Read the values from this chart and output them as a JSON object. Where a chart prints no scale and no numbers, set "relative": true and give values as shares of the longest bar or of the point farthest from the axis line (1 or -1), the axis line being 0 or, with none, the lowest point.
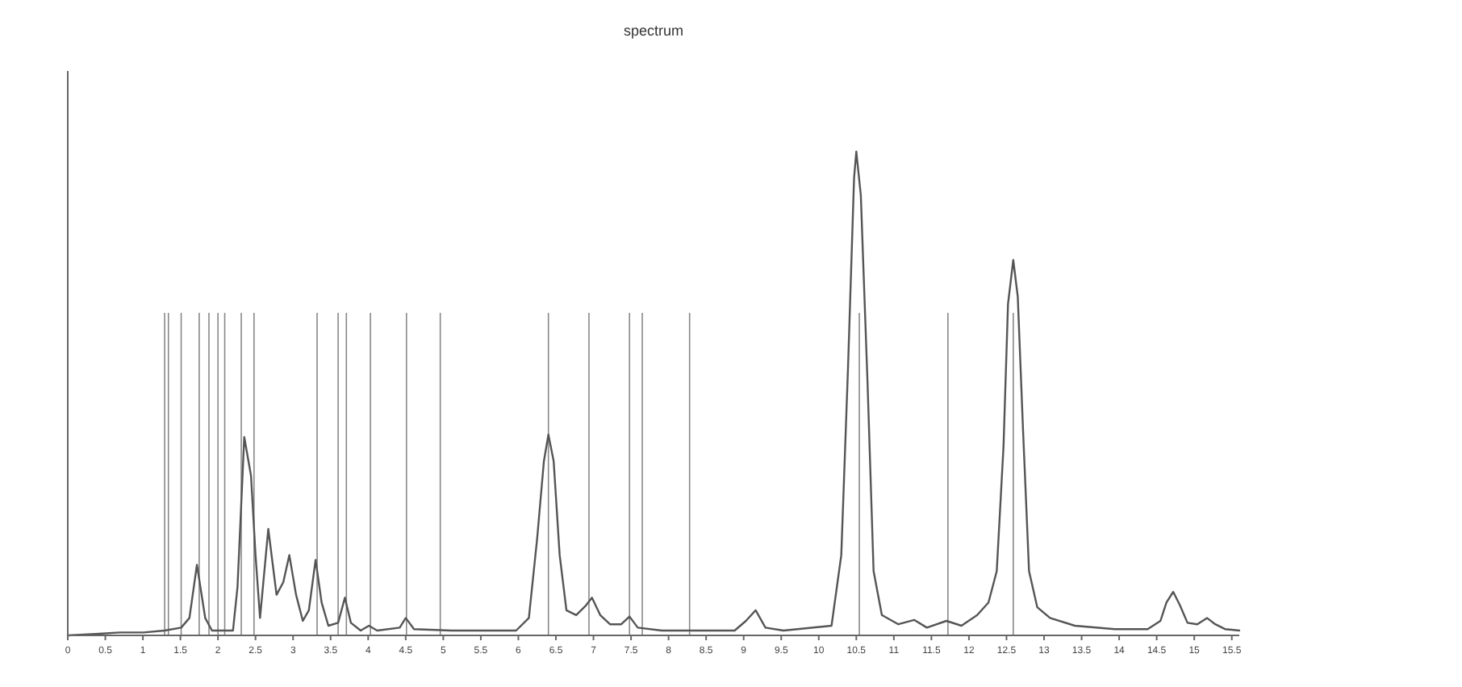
{
  "chart_data": {
    "type": "line",
    "title": "spectrum",
    "relative": true,
    "color": "#555555",
    "xlim": [
      0,
      15.6
    ],
    "xticks": [
      0,
      0.5,
      1,
      1.5,
      2,
      2.5,
      3,
      3.5,
      4,
      4.5,
      5,
      5.5,
      6,
      6.5,
      7,
      7.5,
      8,
      8.5,
      9,
      9.5,
      10,
      10.5,
      11,
      11.5,
      12,
      12.5,
      13,
      13.5,
      14,
      14.5,
      15,
      15.5
    ],
    "x": [
      0,
      0.37,
      0.69,
      1.01,
      1.29,
      1.51,
      1.62,
      1.72,
      1.83,
      1.92,
      2.2,
      2.26,
      2.35,
      2.44,
      2.5,
      2.56,
      2.67,
      2.78,
      2.87,
      2.95,
      3.04,
      3.13,
      3.21,
      3.3,
      3.38,
      3.47,
      3.6,
      3.69,
      3.77,
      3.9,
      4.01,
      4.12,
      4.42,
      4.5,
      4.61,
      5.11,
      5.97,
      6.14,
      6.25,
      6.34,
      6.4,
      6.47,
      6.55,
      6.64,
      6.77,
      6.9,
      6.98,
      7.09,
      7.22,
      7.37,
      7.48,
      7.59,
      7.91,
      8.88,
      9.03,
      9.16,
      9.29,
      9.53,
      10.17,
      10.3,
      10.39,
      10.47,
      10.5,
      10.56,
      10.65,
      10.73,
      10.84,
      11.06,
      11.27,
      11.44,
      11.7,
      11.9,
      12.11,
      12.26,
      12.37,
      12.46,
      12.52,
      12.59,
      12.65,
      12.72,
      12.8,
      12.91,
      13.08,
      13.41,
      13.94,
      14.38,
      14.55,
      14.63,
      14.72,
      14.81,
      14.91,
      15.04,
      15.17,
      15.28,
      15.41,
      15.6
    ],
    "values": [
      0,
      0.003,
      0.006,
      0.006,
      0.01,
      0.016,
      0.036,
      0.146,
      0.036,
      0.01,
      0.01,
      0.1,
      0.41,
      0.33,
      0.166,
      0.036,
      0.22,
      0.084,
      0.11,
      0.166,
      0.084,
      0.03,
      0.052,
      0.156,
      0.068,
      0.02,
      0.026,
      0.078,
      0.026,
      0.01,
      0.02,
      0.01,
      0.016,
      0.036,
      0.013,
      0.01,
      0.01,
      0.036,
      0.2,
      0.36,
      0.415,
      0.36,
      0.166,
      0.052,
      0.042,
      0.062,
      0.078,
      0.042,
      0.023,
      0.023,
      0.039,
      0.016,
      0.01,
      0.01,
      0.03,
      0.052,
      0.016,
      0.01,
      0.02,
      0.166,
      0.555,
      0.945,
      1,
      0.91,
      0.52,
      0.133,
      0.042,
      0.023,
      0.032,
      0.016,
      0.03,
      0.02,
      0.042,
      0.068,
      0.133,
      0.39,
      0.685,
      0.776,
      0.7,
      0.425,
      0.133,
      0.058,
      0.036,
      0.02,
      0.013,
      0.013,
      0.03,
      0.068,
      0.09,
      0.062,
      0.026,
      0.023,
      0.036,
      0.023,
      0.013,
      0.01
    ],
    "ref_lines": [
      {
        "axis": "x",
        "value": 1.29,
        "color": "#888888"
      },
      {
        "axis": "x",
        "value": 1.51,
        "color": "#888888"
      },
      {
        "axis": "x",
        "value": 1.75,
        "color": "#888888"
      },
      {
        "axis": "x",
        "value": 2.0,
        "color": "#888888"
      },
      {
        "axis": "x",
        "value": 2.31,
        "color": "#888888"
      },
      {
        "axis": "x",
        "value": 3.32,
        "color": "#888888"
      },
      {
        "axis": "x",
        "value": 3.71,
        "color": "#888888"
      },
      {
        "axis": "x",
        "value": 4.51,
        "color": "#888888"
      },
      {
        "axis": "x",
        "value": 6.4,
        "color": "#888888"
      },
      {
        "axis": "x",
        "value": 6.94,
        "color": "#888888"
      },
      {
        "axis": "x",
        "value": 7.48,
        "color": "#888888"
      },
      {
        "axis": "x",
        "value": 10.54,
        "color": "#888888"
      },
      {
        "axis": "x",
        "value": 1.34,
        "color": "#888888"
      },
      {
        "axis": "x",
        "value": 1.88,
        "color": "#888888"
      },
      {
        "axis": "x",
        "value": 2.09,
        "color": "#888888"
      },
      {
        "axis": "x",
        "value": 2.48,
        "color": "#888888"
      },
      {
        "axis": "x",
        "value": 3.6,
        "color": "#888888"
      },
      {
        "axis": "x",
        "value": 4.03,
        "color": "#888888"
      },
      {
        "axis": "x",
        "value": 4.96,
        "color": "#888888"
      },
      {
        "axis": "x",
        "value": 7.65,
        "color": "#888888"
      },
      {
        "axis": "x",
        "value": 8.28,
        "color": "#888888"
      },
      {
        "axis": "x",
        "value": 11.72,
        "color": "#888888"
      },
      {
        "axis": "x",
        "value": 12.59,
        "color": "#888888"
      }
    ]
  }
}
